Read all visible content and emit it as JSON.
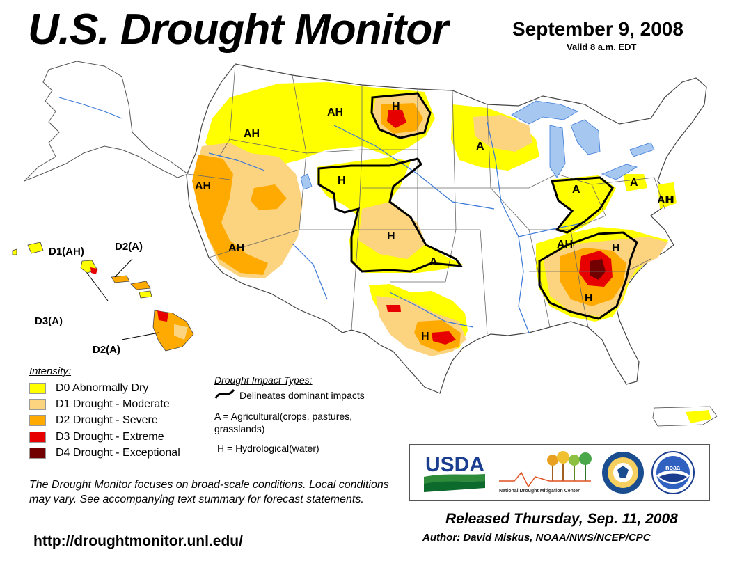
{
  "header": {
    "title": "U.S. Drought Monitor",
    "date": "September 9, 2008",
    "valid": "Valid 8 a.m. EDT"
  },
  "map": {
    "region_labels": [
      "AH",
      "AH",
      "AH",
      "AH",
      "AH",
      "H",
      "H",
      "H",
      "H",
      "H",
      "H",
      "H",
      "A",
      "A",
      "A",
      "A",
      "AH",
      "H"
    ],
    "hawaii_labels": [
      "D1(AH)",
      "D2(A)",
      "D3(A)",
      "D2(A)"
    ]
  },
  "legend": {
    "title": "Intensity:",
    "items": [
      {
        "code": "D0",
        "label": "D0 Abnormally Dry",
        "color": "#ffff00"
      },
      {
        "code": "D1",
        "label": "D1 Drought - Moderate",
        "color": "#fcd37f"
      },
      {
        "code": "D2",
        "label": "D2 Drought - Severe",
        "color": "#ffaa00"
      },
      {
        "code": "D3",
        "label": "D3 Drought - Extreme",
        "color": "#e60000"
      },
      {
        "code": "D4",
        "label": "D4 Drought - Exceptional",
        "color": "#730000"
      }
    ]
  },
  "impacts": {
    "title": "Drought Impact Types:",
    "line_label": "Delineates dominant impacts",
    "agricultural": "A = Agricultural(crops, pastures, grasslands)",
    "hydrological": "H = Hydrological(water)"
  },
  "disclaimer": "The Drought Monitor focuses on broad-scale conditions. Local conditions may vary. See accompanying text summary for forecast statements.",
  "url": "http://droughtmonitor.unl.edu/",
  "logos": {
    "usda": "USDA",
    "ndmc": "National Drought Mitigation Center",
    "noaa": "noaa"
  },
  "footer": {
    "released": "Released Thursday, Sep. 11, 2008",
    "author": "Author: David Miskus, NOAA/NWS/NCEP/CPC"
  },
  "colors": {
    "d0": "#ffff00",
    "d1": "#fcd37f",
    "d2": "#ffaa00",
    "d3": "#e60000",
    "d4": "#730000",
    "water": "#a6c8f0",
    "river": "#3a78d8"
  }
}
